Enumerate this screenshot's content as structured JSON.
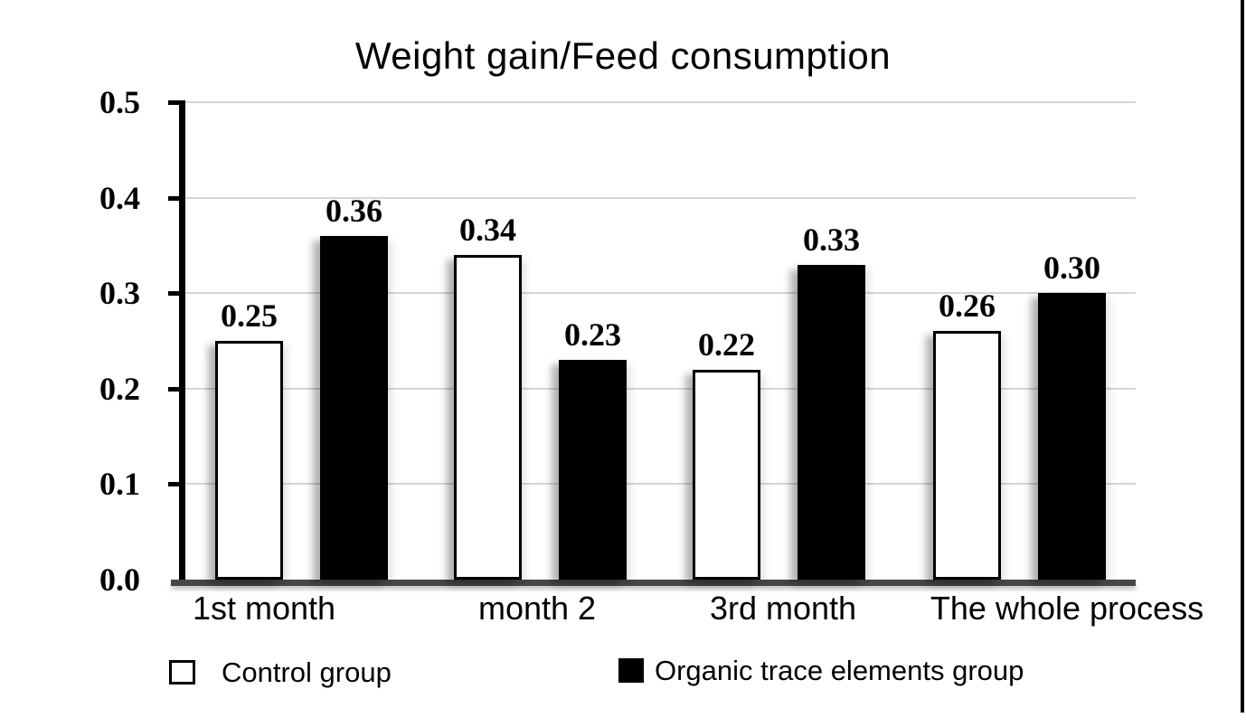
{
  "chart_data": {
    "type": "bar",
    "title": "Weight gain/Feed consumption",
    "categories": [
      "1st month",
      "month 2",
      "3rd month",
      "The whole process"
    ],
    "series": [
      {
        "name": "Control group",
        "color": "#ffffff",
        "border_color": "#000000",
        "values": [
          0.25,
          0.34,
          0.22,
          0.26
        ]
      },
      {
        "name": "Organic trace elements group",
        "color": "#000000",
        "values": [
          0.36,
          0.23,
          0.33,
          0.3
        ]
      }
    ],
    "value_labels": [
      [
        "0.25",
        "0.34",
        "0.22",
        "0.26"
      ],
      [
        "0.36",
        "0.23",
        "0.33",
        "0.30"
      ]
    ],
    "xlabel": "",
    "ylabel": "",
    "ylim": [
      0.0,
      0.5
    ],
    "yticks": [
      "0.0",
      "0.1",
      "0.2",
      "0.3",
      "0.4",
      "0.5"
    ],
    "grid": true,
    "gridline_color": "#d6d6d6",
    "axis_spine_color": "#000000",
    "baseline_color": "#474747",
    "legend_position": "bottom",
    "background_color": "#ffffff",
    "frame_right_border_color": "#000000"
  }
}
